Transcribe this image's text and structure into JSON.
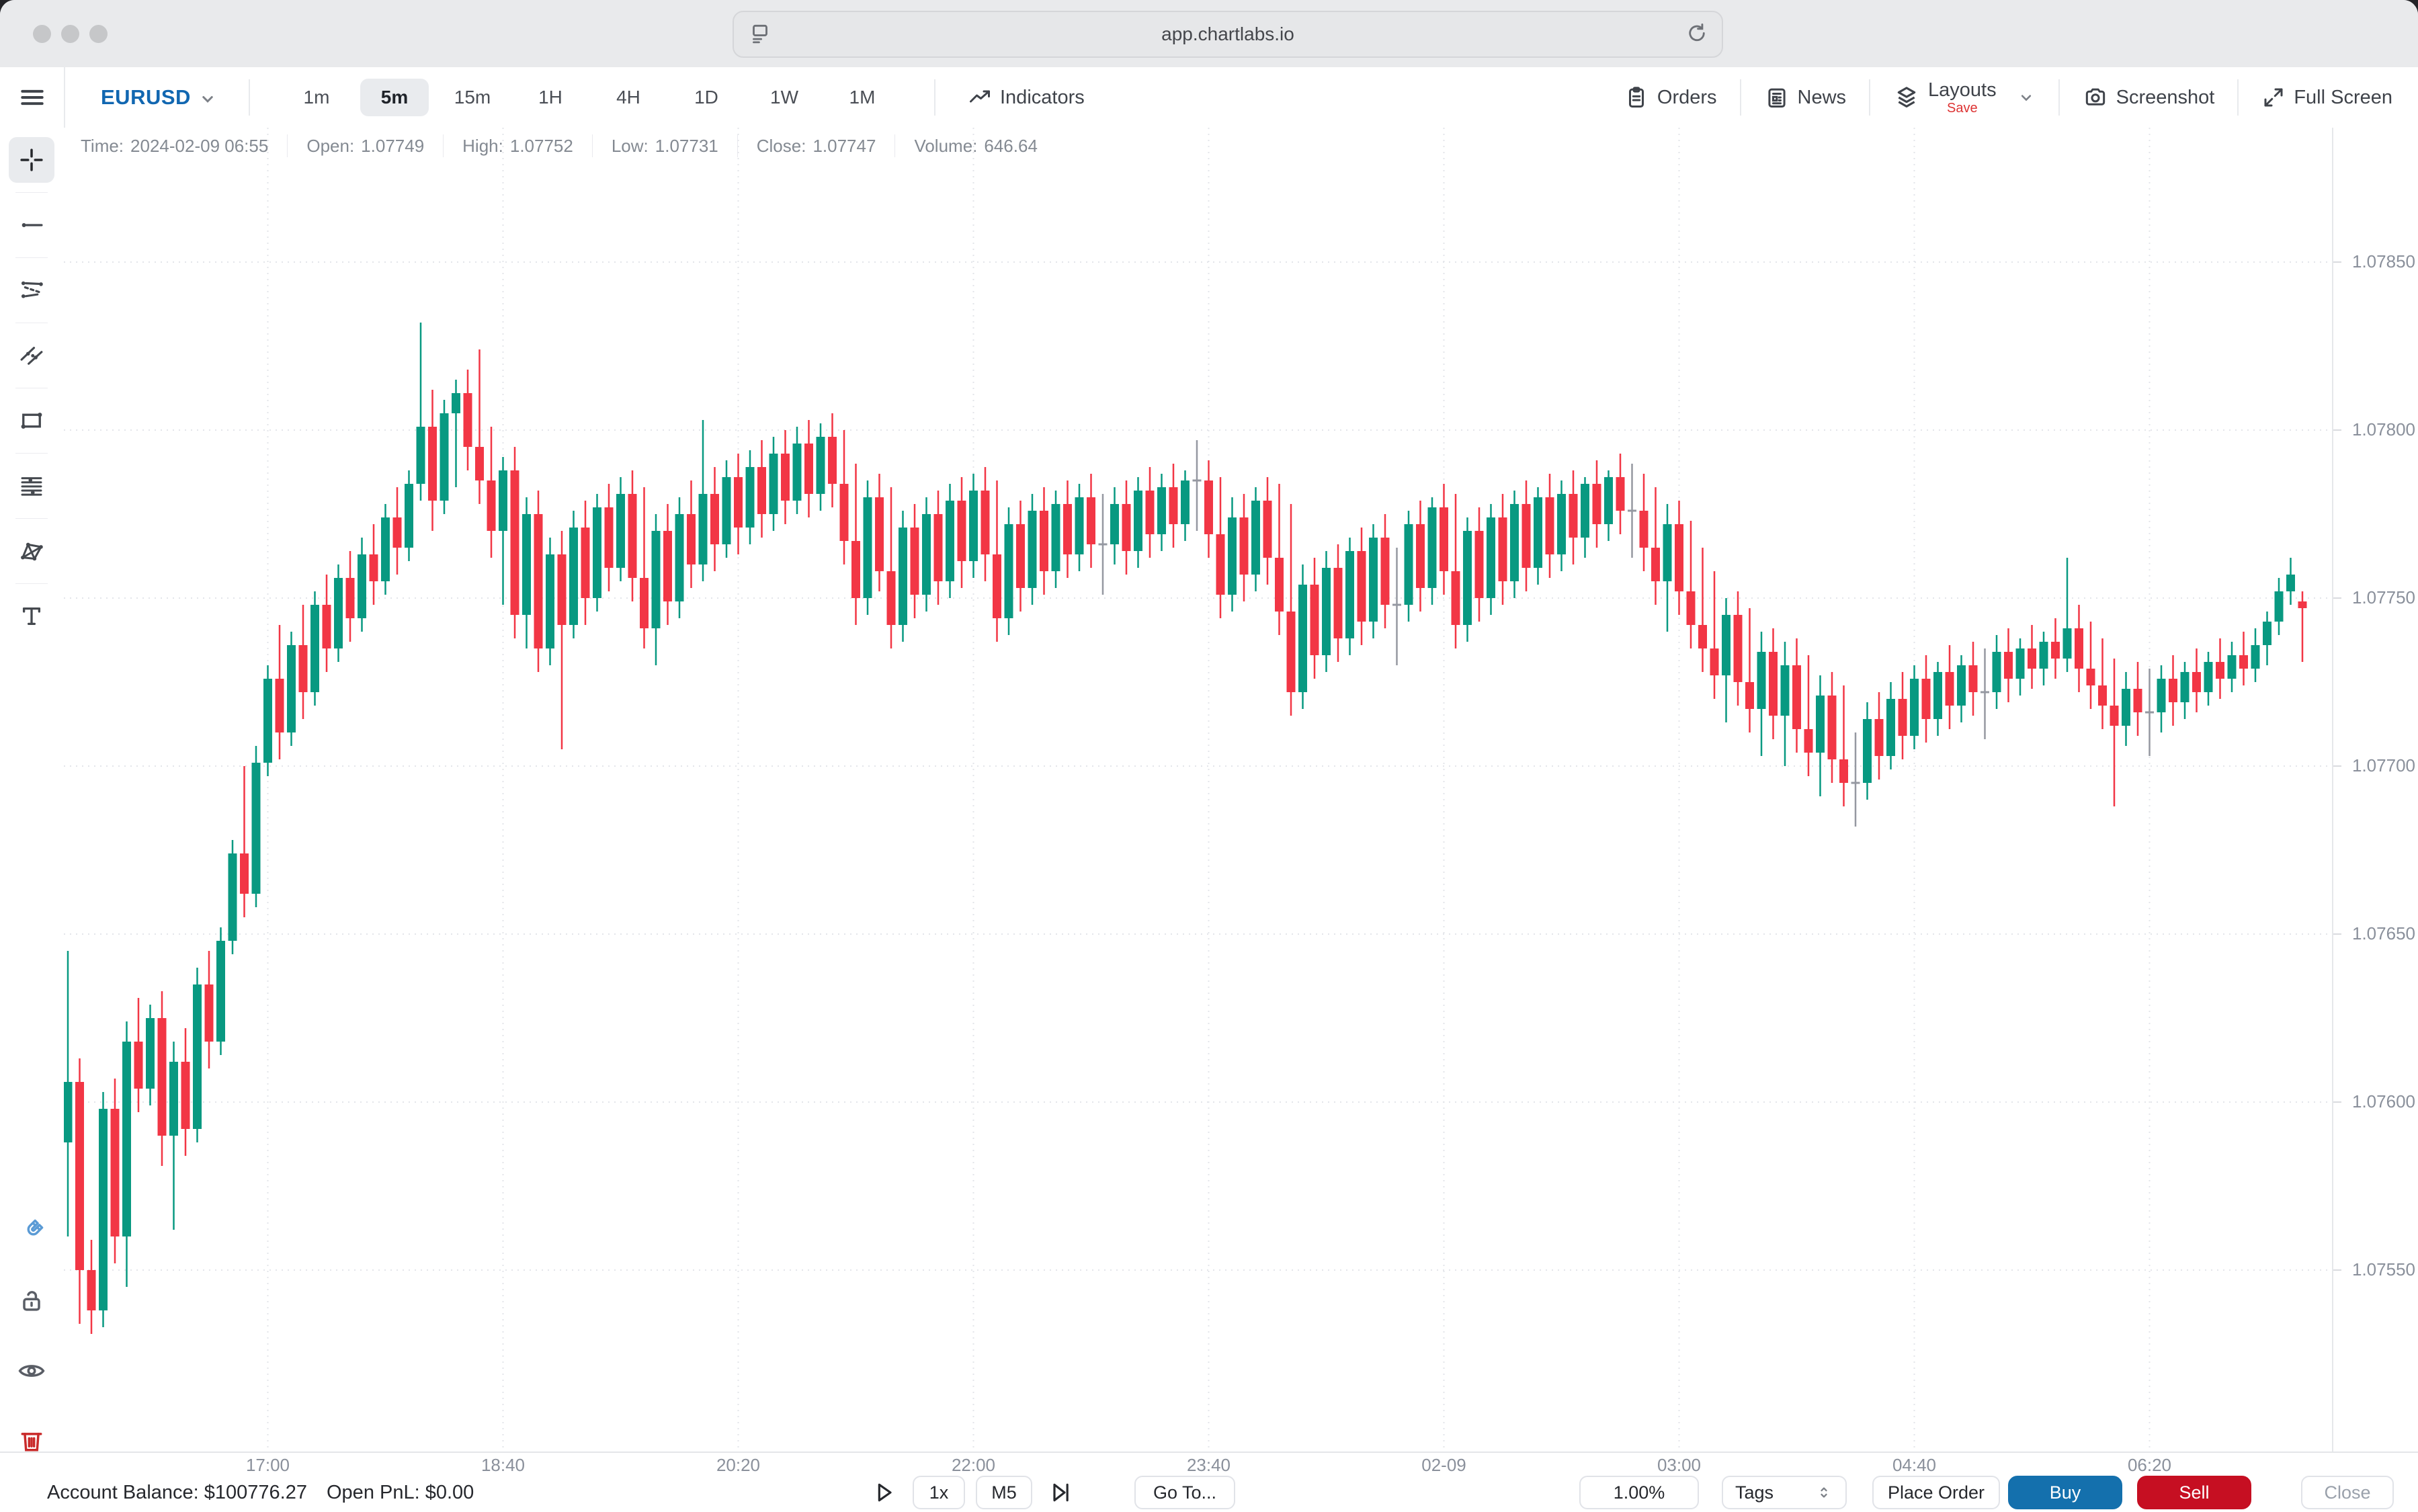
{
  "browser": {
    "url": "app.chartlabs.io"
  },
  "toolbar": {
    "symbol": "EURUSD",
    "timeframes": [
      "1m",
      "5m",
      "15m",
      "1H",
      "4H",
      "1D",
      "1W",
      "1M"
    ],
    "active_timeframe": "5m",
    "indicators": "Indicators",
    "orders": "Orders",
    "news": "News",
    "layouts": "Layouts",
    "layouts_badge": "Save",
    "screenshot": "Screenshot",
    "fullscreen": "Full Screen"
  },
  "info_bar": {
    "items": [
      {
        "label": "Time:",
        "value": "2024-02-09 06:55"
      },
      {
        "label": "Open:",
        "value": "1.07749"
      },
      {
        "label": "High:",
        "value": "1.07752"
      },
      {
        "label": "Low:",
        "value": "1.07731"
      },
      {
        "label": "Close:",
        "value": "1.07747"
      },
      {
        "label": "Volume:",
        "value": "646.64"
      }
    ]
  },
  "sidebar": {
    "tools": [
      "crosshair",
      "trend-ray",
      "parallel-channel",
      "trend-lines",
      "rectangle",
      "fib-retracement",
      "xabcd-pattern",
      "text"
    ],
    "active_tool": "crosshair",
    "utilities": [
      "magnet",
      "lock",
      "eye",
      "trash"
    ]
  },
  "bottom_bar": {
    "account_label": "Account Balance:",
    "account_value": "$100776.27",
    "pnl_label": "Open PnL:",
    "pnl_value": "$0.00",
    "speed": "1x",
    "bar_timeframe": "M5",
    "goto": "Go To...",
    "risk": "1.00%",
    "tags": "Tags",
    "place_order": "Place Order",
    "buy": "Buy",
    "sell": "Sell",
    "close": "Close"
  },
  "chart_data": {
    "type": "candlestick",
    "title": "EURUSD 5m",
    "colors": {
      "up": "#089981",
      "down": "#f23645",
      "doji": "#9598a1",
      "grid": "#e3e5ea"
    },
    "price_axis": [
      {
        "label": "1.07850",
        "value": 1.0785
      },
      {
        "label": "1.07800",
        "value": 1.078
      },
      {
        "label": "1.07750",
        "value": 1.0775
      },
      {
        "label": "1.07700",
        "value": 1.077
      },
      {
        "label": "1.07650",
        "value": 1.0765
      },
      {
        "label": "1.07600",
        "value": 1.076
      },
      {
        "label": "1.07550",
        "value": 1.0755
      }
    ],
    "time_axis": [
      {
        "label": "17:00",
        "index": 17
      },
      {
        "label": "18:40",
        "index": 37
      },
      {
        "label": "20:20",
        "index": 57
      },
      {
        "label": "22:00",
        "index": 77
      },
      {
        "label": "23:40",
        "index": 97
      },
      {
        "label": "02-09",
        "index": 117
      },
      {
        "label": "03:00",
        "index": 137
      },
      {
        "label": "04:40",
        "index": 157
      },
      {
        "label": "06:20",
        "index": 177
      }
    ],
    "last_candle": {
      "time": "2024-02-09 06:55",
      "open": 1.07749,
      "high": 1.07752,
      "low": 1.07731,
      "close": 1.07747,
      "volume": 646.64
    },
    "candles": [
      [
        1.07588,
        1.07645,
        1.0756,
        1.07606
      ],
      [
        1.07606,
        1.07613,
        1.07534,
        1.0755
      ],
      [
        1.0755,
        1.07559,
        1.07531,
        1.07538
      ],
      [
        1.07538,
        1.07603,
        1.07533,
        1.07598
      ],
      [
        1.07598,
        1.07607,
        1.07552,
        1.0756
      ],
      [
        1.0756,
        1.07624,
        1.07545,
        1.07618
      ],
      [
        1.07618,
        1.07631,
        1.07597,
        1.07604
      ],
      [
        1.07604,
        1.07629,
        1.07599,
        1.07625
      ],
      [
        1.07625,
        1.07633,
        1.07581,
        1.0759
      ],
      [
        1.0759,
        1.07618,
        1.07562,
        1.07612
      ],
      [
        1.07612,
        1.07622,
        1.07584,
        1.07592
      ],
      [
        1.07592,
        1.0764,
        1.07588,
        1.07635
      ],
      [
        1.07635,
        1.07645,
        1.0761,
        1.07618
      ],
      [
        1.07618,
        1.07652,
        1.07614,
        1.07648
      ],
      [
        1.07648,
        1.07678,
        1.07644,
        1.07674
      ],
      [
        1.07674,
        1.077,
        1.07655,
        1.07662
      ],
      [
        1.07662,
        1.07706,
        1.07658,
        1.07701
      ],
      [
        1.07701,
        1.0773,
        1.07697,
        1.07726
      ],
      [
        1.07726,
        1.07742,
        1.07702,
        1.0771
      ],
      [
        1.0771,
        1.0774,
        1.07706,
        1.07736
      ],
      [
        1.07736,
        1.07748,
        1.07714,
        1.07722
      ],
      [
        1.07722,
        1.07752,
        1.07718,
        1.07748
      ],
      [
        1.07748,
        1.07757,
        1.07728,
        1.07735
      ],
      [
        1.07735,
        1.0776,
        1.07731,
        1.07756
      ],
      [
        1.07756,
        1.07764,
        1.07737,
        1.07744
      ],
      [
        1.07744,
        1.07768,
        1.0774,
        1.07763
      ],
      [
        1.07763,
        1.07772,
        1.07748,
        1.07755
      ],
      [
        1.07755,
        1.07778,
        1.07751,
        1.07774
      ],
      [
        1.07774,
        1.07783,
        1.07757,
        1.07765
      ],
      [
        1.07765,
        1.07788,
        1.07761,
        1.07784
      ],
      [
        1.07784,
        1.07832,
        1.07779,
        1.07801
      ],
      [
        1.07801,
        1.07812,
        1.0777,
        1.07779
      ],
      [
        1.07779,
        1.07809,
        1.07775,
        1.07805
      ],
      [
        1.07805,
        1.07815,
        1.07783,
        1.07811
      ],
      [
        1.07811,
        1.07818,
        1.07788,
        1.07795
      ],
      [
        1.07795,
        1.07824,
        1.07778,
        1.07785
      ],
      [
        1.07785,
        1.07801,
        1.07762,
        1.0777
      ],
      [
        1.0777,
        1.07792,
        1.07748,
        1.07788
      ],
      [
        1.07788,
        1.07795,
        1.07738,
        1.07745
      ],
      [
        1.07745,
        1.0778,
        1.07735,
        1.07775
      ],
      [
        1.07775,
        1.07782,
        1.07728,
        1.07735
      ],
      [
        1.07735,
        1.07768,
        1.0773,
        1.07763
      ],
      [
        1.07763,
        1.0777,
        1.07705,
        1.07742
      ],
      [
        1.07742,
        1.07776,
        1.07738,
        1.07771
      ],
      [
        1.07771,
        1.07779,
        1.07742,
        1.0775
      ],
      [
        1.0775,
        1.07781,
        1.07746,
        1.07777
      ],
      [
        1.07777,
        1.07784,
        1.07752,
        1.07759
      ],
      [
        1.07759,
        1.07786,
        1.07755,
        1.07781
      ],
      [
        1.07781,
        1.07788,
        1.07749,
        1.07756
      ],
      [
        1.07756,
        1.07783,
        1.07735,
        1.07741
      ],
      [
        1.07741,
        1.07775,
        1.0773,
        1.0777
      ],
      [
        1.0777,
        1.07778,
        1.07742,
        1.07749
      ],
      [
        1.07749,
        1.0778,
        1.07744,
        1.07775
      ],
      [
        1.07775,
        1.07785,
        1.07753,
        1.0776
      ],
      [
        1.0776,
        1.07803,
        1.07755,
        1.07781
      ],
      [
        1.07781,
        1.07789,
        1.07758,
        1.07766
      ],
      [
        1.07766,
        1.07791,
        1.07762,
        1.07786
      ],
      [
        1.07786,
        1.07793,
        1.07763,
        1.07771
      ],
      [
        1.07771,
        1.07794,
        1.07766,
        1.07789
      ],
      [
        1.07789,
        1.07797,
        1.07768,
        1.07775
      ],
      [
        1.07775,
        1.07798,
        1.0777,
        1.07793
      ],
      [
        1.07793,
        1.078,
        1.07772,
        1.07779
      ],
      [
        1.07779,
        1.07801,
        1.07775,
        1.07796
      ],
      [
        1.07796,
        1.07803,
        1.07774,
        1.07781
      ],
      [
        1.07781,
        1.07802,
        1.07776,
        1.07798
      ],
      [
        1.07798,
        1.07805,
        1.07777,
        1.07784
      ],
      [
        1.07784,
        1.078,
        1.0776,
        1.07767
      ],
      [
        1.07767,
        1.0779,
        1.07742,
        1.0775
      ],
      [
        1.0775,
        1.07785,
        1.07745,
        1.0778
      ],
      [
        1.0778,
        1.07787,
        1.07752,
        1.07758
      ],
      [
        1.07758,
        1.07783,
        1.07735,
        1.07742
      ],
      [
        1.07742,
        1.07776,
        1.07737,
        1.07771
      ],
      [
        1.07771,
        1.07778,
        1.07744,
        1.07751
      ],
      [
        1.07751,
        1.0778,
        1.07746,
        1.07775
      ],
      [
        1.07775,
        1.07782,
        1.07748,
        1.07755
      ],
      [
        1.07755,
        1.07784,
        1.0775,
        1.07779
      ],
      [
        1.07779,
        1.07786,
        1.07753,
        1.07761
      ],
      [
        1.07761,
        1.07787,
        1.07756,
        1.07782
      ],
      [
        1.07782,
        1.07789,
        1.07755,
        1.07763
      ],
      [
        1.07763,
        1.07785,
        1.07737,
        1.07744
      ],
      [
        1.07744,
        1.07777,
        1.07739,
        1.07772
      ],
      [
        1.07772,
        1.07779,
        1.07746,
        1.07753
      ],
      [
        1.07753,
        1.07781,
        1.07748,
        1.07776
      ],
      [
        1.07776,
        1.07783,
        1.07751,
        1.07758
      ],
      [
        1.07758,
        1.07782,
        1.07753,
        1.07778
      ],
      [
        1.07778,
        1.07785,
        1.07756,
        1.07763
      ],
      [
        1.07763,
        1.07784,
        1.07758,
        1.0778
      ],
      [
        1.0778,
        1.07787,
        1.07759,
        1.07766
      ],
      [
        1.07766,
        1.07781,
        1.07751,
        1.07766
      ],
      [
        1.07766,
        1.07783,
        1.0776,
        1.07778
      ],
      [
        1.07778,
        1.07785,
        1.07757,
        1.07764
      ],
      [
        1.07764,
        1.07786,
        1.07759,
        1.07782
      ],
      [
        1.07782,
        1.07789,
        1.07762,
        1.07769
      ],
      [
        1.07769,
        1.07787,
        1.07764,
        1.07783
      ],
      [
        1.07783,
        1.0779,
        1.07765,
        1.07772
      ],
      [
        1.07772,
        1.07788,
        1.07767,
        1.07785
      ],
      [
        1.07785,
        1.07797,
        1.0777,
        1.07785
      ],
      [
        1.07785,
        1.07791,
        1.07762,
        1.07769
      ],
      [
        1.07769,
        1.07786,
        1.07744,
        1.07751
      ],
      [
        1.07751,
        1.0778,
        1.07746,
        1.07774
      ],
      [
        1.07774,
        1.07781,
        1.07749,
        1.07757
      ],
      [
        1.07757,
        1.07783,
        1.07752,
        1.07779
      ],
      [
        1.07779,
        1.07786,
        1.07754,
        1.07762
      ],
      [
        1.07762,
        1.07784,
        1.07739,
        1.07746
      ],
      [
        1.07746,
        1.07778,
        1.07715,
        1.07722
      ],
      [
        1.07722,
        1.0776,
        1.07717,
        1.07754
      ],
      [
        1.07754,
        1.07762,
        1.07726,
        1.07733
      ],
      [
        1.07733,
        1.07764,
        1.07728,
        1.07759
      ],
      [
        1.07759,
        1.07766,
        1.07731,
        1.07738
      ],
      [
        1.07738,
        1.07768,
        1.07733,
        1.07764
      ],
      [
        1.07764,
        1.07771,
        1.07736,
        1.07743
      ],
      [
        1.07743,
        1.07772,
        1.07738,
        1.07768
      ],
      [
        1.07768,
        1.07775,
        1.07741,
        1.07748
      ],
      [
        1.07748,
        1.07765,
        1.0773,
        1.07748
      ],
      [
        1.07748,
        1.07776,
        1.07743,
        1.07772
      ],
      [
        1.07772,
        1.07779,
        1.07746,
        1.07753
      ],
      [
        1.07753,
        1.0778,
        1.07748,
        1.07777
      ],
      [
        1.07777,
        1.07784,
        1.07751,
        1.07758
      ],
      [
        1.07758,
        1.07781,
        1.07735,
        1.07742
      ],
      [
        1.07742,
        1.07774,
        1.07737,
        1.0777
      ],
      [
        1.0777,
        1.07777,
        1.07743,
        1.0775
      ],
      [
        1.0775,
        1.07778,
        1.07745,
        1.07774
      ],
      [
        1.07774,
        1.07781,
        1.07748,
        1.07755
      ],
      [
        1.07755,
        1.07782,
        1.0775,
        1.07778
      ],
      [
        1.07778,
        1.07785,
        1.07752,
        1.07759
      ],
      [
        1.07759,
        1.07783,
        1.07754,
        1.0778
      ],
      [
        1.0778,
        1.07787,
        1.07756,
        1.07763
      ],
      [
        1.07763,
        1.07785,
        1.07758,
        1.07781
      ],
      [
        1.07781,
        1.07788,
        1.0776,
        1.07768
      ],
      [
        1.07768,
        1.07786,
        1.07762,
        1.07784
      ],
      [
        1.07784,
        1.07791,
        1.07765,
        1.07772
      ],
      [
        1.07772,
        1.07788,
        1.07767,
        1.07786
      ],
      [
        1.07786,
        1.07793,
        1.07769,
        1.07776
      ],
      [
        1.07776,
        1.0779,
        1.07762,
        1.07776
      ],
      [
        1.07776,
        1.07787,
        1.07758,
        1.07765
      ],
      [
        1.07765,
        1.07783,
        1.07748,
        1.07755
      ],
      [
        1.07755,
        1.07778,
        1.0774,
        1.07772
      ],
      [
        1.07772,
        1.07779,
        1.07745,
        1.07752
      ],
      [
        1.07752,
        1.07773,
        1.07735,
        1.07742
      ],
      [
        1.07742,
        1.07765,
        1.07728,
        1.07735
      ],
      [
        1.07735,
        1.07758,
        1.0772,
        1.07727
      ],
      [
        1.07727,
        1.0775,
        1.07713,
        1.07745
      ],
      [
        1.07745,
        1.07752,
        1.07718,
        1.07725
      ],
      [
        1.07725,
        1.07747,
        1.0771,
        1.07717
      ],
      [
        1.07717,
        1.0774,
        1.07703,
        1.07734
      ],
      [
        1.07734,
        1.07741,
        1.07708,
        1.07715
      ],
      [
        1.07715,
        1.07737,
        1.077,
        1.0773
      ],
      [
        1.0773,
        1.07738,
        1.07704,
        1.07711
      ],
      [
        1.07711,
        1.07733,
        1.07697,
        1.07704
      ],
      [
        1.07704,
        1.07727,
        1.07691,
        1.07721
      ],
      [
        1.07721,
        1.07728,
        1.07695,
        1.07702
      ],
      [
        1.07702,
        1.07724,
        1.07688,
        1.07695
      ],
      [
        1.07695,
        1.0771,
        1.07682,
        1.07695
      ],
      [
        1.07695,
        1.07719,
        1.0769,
        1.07714
      ],
      [
        1.07714,
        1.07722,
        1.07696,
        1.07703
      ],
      [
        1.07703,
        1.07725,
        1.07699,
        1.0772
      ],
      [
        1.0772,
        1.07728,
        1.07702,
        1.07709
      ],
      [
        1.07709,
        1.0773,
        1.07705,
        1.07726
      ],
      [
        1.07726,
        1.07733,
        1.07707,
        1.07714
      ],
      [
        1.07714,
        1.07731,
        1.07709,
        1.07728
      ],
      [
        1.07728,
        1.07736,
        1.07711,
        1.07718
      ],
      [
        1.07718,
        1.07733,
        1.07713,
        1.0773
      ],
      [
        1.0773,
        1.07737,
        1.07715,
        1.07722
      ],
      [
        1.07722,
        1.07735,
        1.07708,
        1.07722
      ],
      [
        1.07722,
        1.07739,
        1.07717,
        1.07734
      ],
      [
        1.07734,
        1.07741,
        1.07719,
        1.07726
      ],
      [
        1.07726,
        1.07738,
        1.07721,
        1.07735
      ],
      [
        1.07735,
        1.07742,
        1.07723,
        1.07729
      ],
      [
        1.07729,
        1.0774,
        1.07724,
        1.07737
      ],
      [
        1.07737,
        1.07744,
        1.07726,
        1.07732
      ],
      [
        1.07732,
        1.07762,
        1.07728,
        1.07741
      ],
      [
        1.07741,
        1.07748,
        1.07722,
        1.07729
      ],
      [
        1.07729,
        1.07743,
        1.07717,
        1.07724
      ],
      [
        1.07724,
        1.07738,
        1.07711,
        1.07718
      ],
      [
        1.07718,
        1.07732,
        1.07688,
        1.07712
      ],
      [
        1.07712,
        1.07728,
        1.07706,
        1.07723
      ],
      [
        1.07723,
        1.07731,
        1.07709,
        1.07716
      ],
      [
        1.07716,
        1.07729,
        1.07703,
        1.07716
      ],
      [
        1.07716,
        1.0773,
        1.0771,
        1.07726
      ],
      [
        1.07726,
        1.07733,
        1.07712,
        1.07719
      ],
      [
        1.07719,
        1.07731,
        1.07714,
        1.07728
      ],
      [
        1.07728,
        1.07735,
        1.07716,
        1.07722
      ],
      [
        1.07722,
        1.07734,
        1.07718,
        1.07731
      ],
      [
        1.07731,
        1.07738,
        1.0772,
        1.07726
      ],
      [
        1.07726,
        1.07737,
        1.07722,
        1.07733
      ],
      [
        1.07733,
        1.0774,
        1.07724,
        1.07729
      ],
      [
        1.07729,
        1.07741,
        1.07725,
        1.07736
      ],
      [
        1.07736,
        1.07746,
        1.0773,
        1.07743
      ],
      [
        1.07743,
        1.07756,
        1.07739,
        1.07752
      ],
      [
        1.07752,
        1.07762,
        1.07748,
        1.07757
      ],
      [
        1.07749,
        1.07752,
        1.07731,
        1.07747
      ]
    ]
  }
}
